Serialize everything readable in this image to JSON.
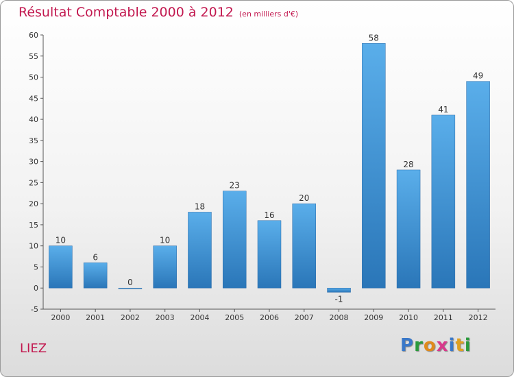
{
  "title": "Résultat Comptable 2000 à 2012",
  "unit_note": "(en milliers d'€)",
  "commune": "LIEZ",
  "logo": {
    "letters": [
      "P",
      "r",
      "o",
      "x",
      "i",
      "t",
      "i"
    ],
    "colors": [
      "#3a78c8",
      "#2a9a3c",
      "#e08a1c",
      "#d83a8c",
      "#3a78c8",
      "#e0a020",
      "#2a9a3c"
    ]
  },
  "colors": {
    "bar_top": "#5aaeea",
    "bar_bottom": "#2a76b8",
    "title": "#c2184f"
  },
  "chart_data": {
    "type": "bar",
    "title": "Résultat Comptable 2000 à 2012",
    "xlabel": "",
    "ylabel": "",
    "categories": [
      "2000",
      "2001",
      "2002",
      "2003",
      "2004",
      "2005",
      "2006",
      "2007",
      "2008",
      "2009",
      "2010",
      "2011",
      "2012"
    ],
    "values": [
      10,
      6,
      0,
      10,
      18,
      23,
      16,
      20,
      -1,
      58,
      28,
      41,
      49
    ],
    "labels": [
      "10",
      "6",
      "0",
      "10",
      "18",
      "23",
      "16",
      "20",
      "-1",
      "58",
      "28",
      "41",
      "49"
    ],
    "ylim": [
      -5,
      60
    ],
    "yticks": [
      -5,
      0,
      5,
      10,
      15,
      20,
      25,
      30,
      35,
      40,
      45,
      50,
      55,
      60
    ],
    "grid": false,
    "legend": "none"
  }
}
